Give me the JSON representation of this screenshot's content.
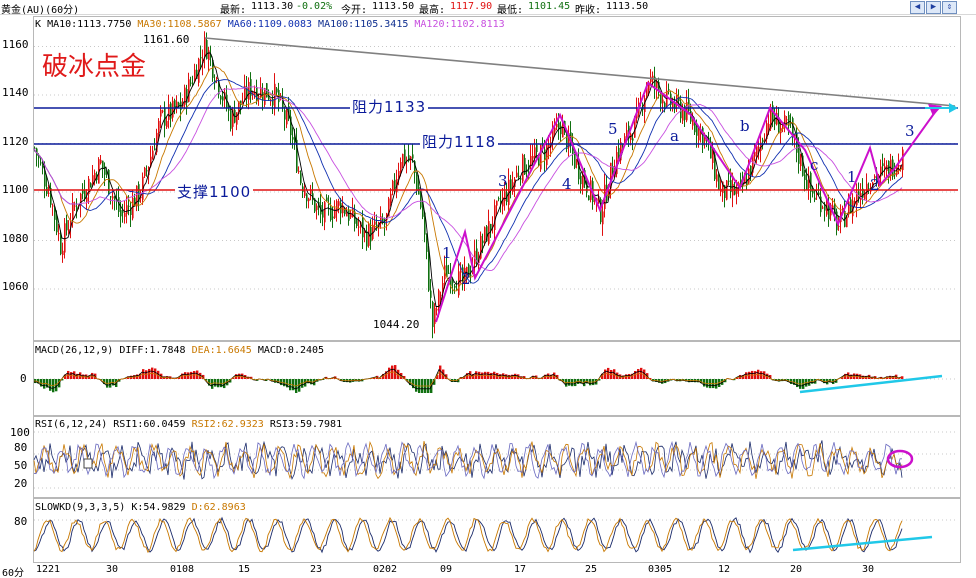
{
  "topbar": {
    "symbol": "黄金(AU)(60分)",
    "latest_label": "最新:",
    "latest": "1113.30",
    "change": "-0.02%",
    "open_label": "今开:",
    "open": "1113.50",
    "high_label": "最高:",
    "high": "1117.90",
    "low_label": "最低:",
    "low": "1101.45",
    "prev_label": "昨收:",
    "prev": "1113.50",
    "nav_icons": [
      "arrow-left-icon",
      "arrow-right-icon",
      "arrow-updown-icon"
    ]
  },
  "main": {
    "legend": {
      "k": "K",
      "ma10": "MA10:1113.7750",
      "ma30": "MA30:1108.5867",
      "ma60": "MA60:1109.0083",
      "ma100": "MA100:1105.3415",
      "ma120": "MA120:1102.8113"
    },
    "title": "破冰点金",
    "y_ticks": [
      "1160",
      "1140",
      "1120",
      "1100",
      "1080",
      "1060"
    ],
    "resistance1": "阻力1133",
    "resistance2": "阻力1118",
    "support": "支撑1100",
    "high_annot": "1161.60",
    "low_annot": "1044.20",
    "waves": [
      "1",
      "2",
      "3",
      "4",
      "5",
      "a",
      "b",
      "c",
      "1",
      "2",
      "3"
    ]
  },
  "macd": {
    "legend": "MACD(26,12,9)",
    "diff": "DIFF:1.7848",
    "dea": "DEA:1.6645",
    "macd": "MACD:0.2405",
    "zero_tick": "0"
  },
  "rsi": {
    "legend": "RSI(6,12,24)",
    "rsi1": "RSI1:60.0459",
    "rsi2": "RSI2:62.9323",
    "rsi3": "RSI3:59.7981",
    "ticks": [
      "100",
      "80",
      "50",
      "20"
    ]
  },
  "kd": {
    "legend": "SLOWKD(9,3,3,5)",
    "k": "K:54.9829",
    "d": "D:62.8963",
    "tick": "80"
  },
  "xaxis": {
    "period": "60分",
    "ticks": [
      "1221",
      "30",
      "0108",
      "15",
      "23",
      "0202",
      "09",
      "17",
      "25",
      "0305",
      "12",
      "20",
      "30"
    ]
  },
  "colors": {
    "up": "#e01010",
    "down": "#107010",
    "ma10": "#000000",
    "ma30": "#c87800",
    "ma60": "#1030b0",
    "ma120": "#c850e0",
    "resistance": "#0a1a9a",
    "support": "#e01010",
    "wave": "#cc10cc",
    "trend": "#20c8e8",
    "trendline": "#808080"
  }
}
